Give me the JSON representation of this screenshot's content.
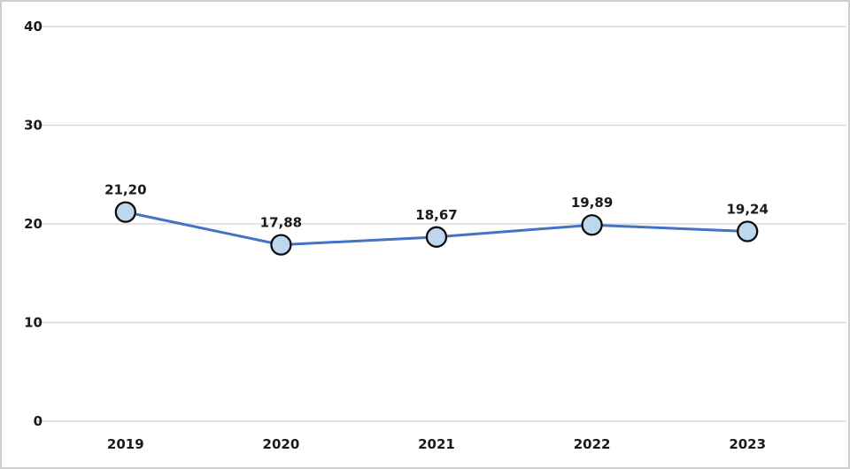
{
  "chart_data": {
    "type": "line",
    "title": "",
    "categories": [
      "2019",
      "2020",
      "2021",
      "2022",
      "2023"
    ],
    "series": [
      {
        "name": "",
        "values": [
          21.2,
          17.88,
          18.67,
          19.89,
          19.24
        ]
      }
    ],
    "data_labels": [
      "21,20",
      "17,88",
      "18,67",
      "19,89",
      "19,24"
    ],
    "xlabel": "",
    "ylabel": "",
    "ylim": [
      0,
      40
    ],
    "y_ticks": [
      0,
      10,
      20,
      30,
      40
    ],
    "y_tick_labels": [
      "0",
      "10",
      "20",
      "30",
      "40"
    ],
    "grid": true,
    "legend_position": "none",
    "colors": {
      "line": "#4472C4",
      "marker_fill": "#BDD7EE",
      "marker_stroke": "#0d0d0d",
      "grid": "#d9d9d9",
      "text": "#1a1a1a",
      "frame_border": "#cfcfcf"
    }
  }
}
